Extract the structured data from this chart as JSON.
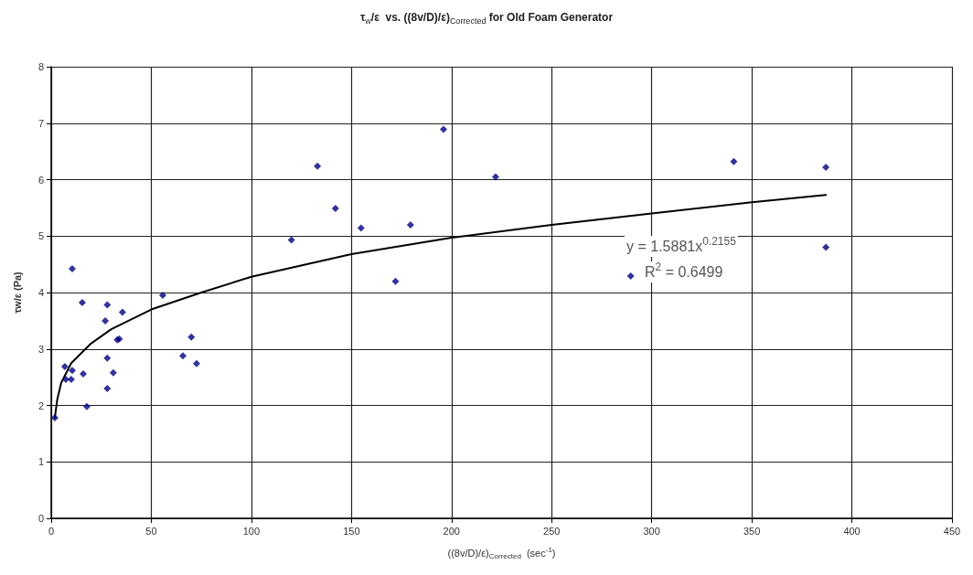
{
  "chart_data": {
    "type": "scatter",
    "title": "τ$_{w}$/ε  vs. ((8v/D)/ε)$_{Corrected}$ for Old Foam Generator",
    "xlabel": "((8v/D)/ε)$_{Corrected}$  (sec$^{-1}$)",
    "ylabel": "τw/ε (Pa)",
    "annotations": [
      "y = 1.5881x$^{0.2155}$",
      "R$^{2}$ = 0.6499"
    ],
    "xlim": [
      0,
      450
    ],
    "xticks": [
      0,
      50,
      100,
      150,
      200,
      250,
      300,
      350,
      400,
      450
    ],
    "ylim": [
      0,
      8
    ],
    "yticks": [
      0,
      1,
      2,
      3,
      4,
      5,
      6,
      7,
      8
    ],
    "grid": true,
    "series": [
      {
        "color": "#000080",
        "marker": "diamond",
        "x": [
          1.8,
          6.8,
          7.3,
          10,
          10.5,
          10.5,
          15.5,
          16,
          17.8,
          28,
          27,
          28,
          28,
          31,
          33,
          34,
          35.6,
          55.7,
          65.8,
          70,
          72.6,
          120,
          133,
          142,
          154.8,
          172,
          179.5,
          196,
          222,
          289.5,
          341,
          387,
          387
        ],
        "values": [
          1.78,
          2.69,
          2.46,
          2.46,
          4.42,
          2.62,
          3.82,
          2.56,
          1.98,
          3.78,
          3.5,
          2.84,
          2.3,
          2.58,
          3.16,
          3.18,
          3.65,
          3.95,
          2.88,
          3.21,
          2.74,
          4.93,
          6.24,
          5.49,
          5.14,
          4.2,
          5.2,
          6.89,
          6.05,
          4.29,
          6.32,
          6.22,
          4.8
        ]
      },
      {
        "type": "line",
        "color": "#000000",
        "marker": "none",
        "line_style": "solid",
        "x": [
          1.8,
          3,
          5,
          10,
          20,
          30,
          50,
          75,
          100,
          150,
          200,
          250,
          300,
          350,
          387
        ],
        "values": [
          1.78,
          2.1,
          2.4,
          2.75,
          3.1,
          3.35,
          3.7,
          4.0,
          4.28,
          4.68,
          4.97,
          5.2,
          5.4,
          5.6,
          5.73
        ]
      }
    ]
  }
}
